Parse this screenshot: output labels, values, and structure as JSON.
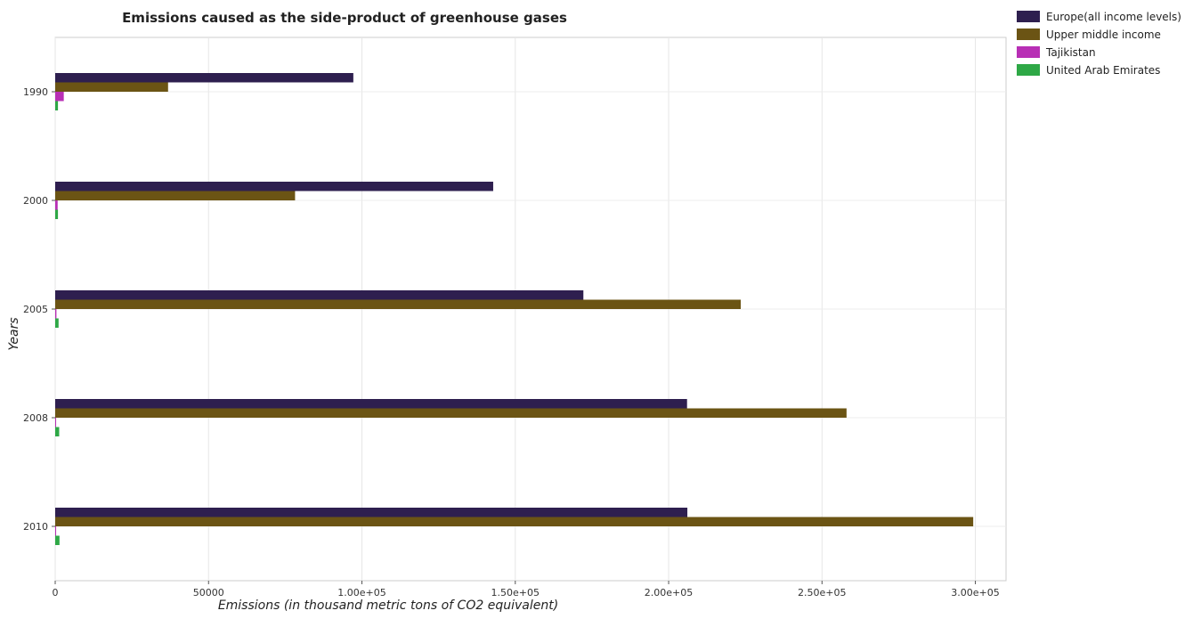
{
  "chart_data": {
    "type": "bar",
    "orientation": "horizontal",
    "title": "Emissions caused as the side-product of greenhouse gases",
    "xlabel": "Emissions (in thousand metric tons of CO2 equivalent)",
    "ylabel": "Years",
    "categories": [
      "1990",
      "2000",
      "2005",
      "2008",
      "2010"
    ],
    "xlim": [
      0,
      310000
    ],
    "xticks": [
      0,
      50000,
      100000,
      150000,
      200000,
      250000,
      300000
    ],
    "xtick_labels": [
      "0",
      "50000",
      "1.00e+05",
      "1.50e+05",
      "2.00e+05",
      "2.50e+05",
      "3.00e+05"
    ],
    "grid": true,
    "legend_position": "top-right",
    "series": [
      {
        "name": "Europe(all income levels)",
        "color": "#2e1f4f",
        "values": [
          97200,
          142800,
          172200,
          206000,
          206100
        ]
      },
      {
        "name": "Upper middle income",
        "color": "#6b5414",
        "values": [
          36800,
          78200,
          223500,
          258000,
          299300
        ]
      },
      {
        "name": "Tajikistan",
        "color": "#b82fb5",
        "values": [
          2800,
          800,
          400,
          300,
          300
        ]
      },
      {
        "name": "United Arab Emirates",
        "color": "#2ea846",
        "values": [
          900,
          900,
          1100,
          1300,
          1400
        ]
      }
    ]
  }
}
